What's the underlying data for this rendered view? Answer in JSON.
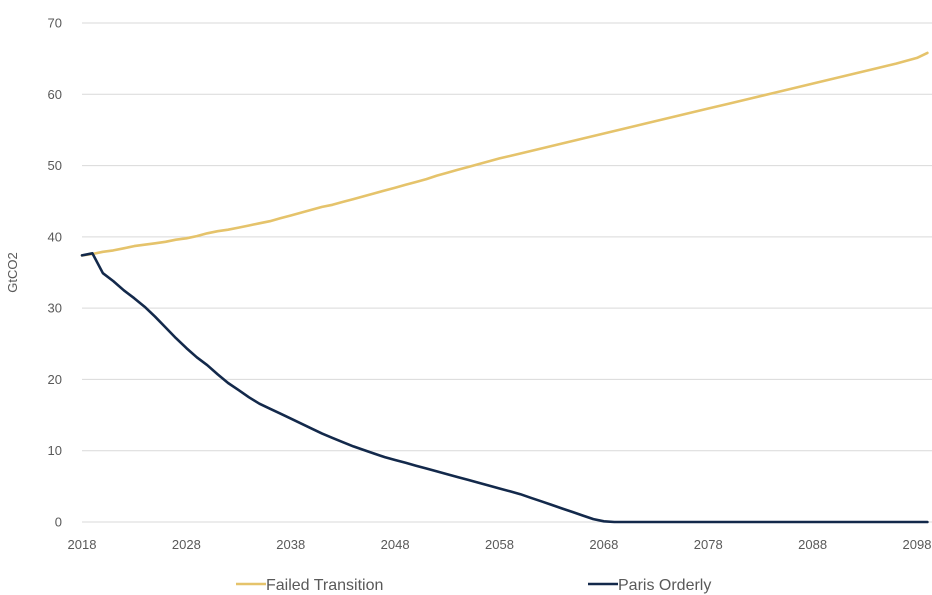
{
  "chart_data": {
    "type": "line",
    "title": "",
    "xlabel": "",
    "ylabel": "GtCO2",
    "xlim": [
      2018,
      2099
    ],
    "ylim": [
      0,
      70
    ],
    "x_ticks": [
      2018,
      2028,
      2038,
      2048,
      2058,
      2068,
      2078,
      2088,
      2098
    ],
    "y_ticks": [
      0,
      10,
      20,
      30,
      40,
      50,
      60,
      70
    ],
    "grid": true,
    "legend_position": "bottom",
    "series": [
      {
        "name": "Failed Transition",
        "color": "#e5c36b",
        "points": [
          [
            2018,
            37.4
          ],
          [
            2019,
            37.6
          ],
          [
            2020,
            37.9
          ],
          [
            2021,
            38.1
          ],
          [
            2022,
            38.4
          ],
          [
            2023,
            38.7
          ],
          [
            2024,
            38.9
          ],
          [
            2025,
            39.1
          ],
          [
            2026,
            39.3
          ],
          [
            2027,
            39.6
          ],
          [
            2028,
            39.8
          ],
          [
            2029,
            40.1
          ],
          [
            2030,
            40.5
          ],
          [
            2031,
            40.8
          ],
          [
            2032,
            41.0
          ],
          [
            2033,
            41.3
          ],
          [
            2034,
            41.6
          ],
          [
            2035,
            41.9
          ],
          [
            2036,
            42.2
          ],
          [
            2037,
            42.6
          ],
          [
            2038,
            43.0
          ],
          [
            2039,
            43.4
          ],
          [
            2040,
            43.8
          ],
          [
            2041,
            44.2
          ],
          [
            2042,
            44.5
          ],
          [
            2043,
            44.9
          ],
          [
            2044,
            45.3
          ],
          [
            2045,
            45.7
          ],
          [
            2046,
            46.1
          ],
          [
            2047,
            46.5
          ],
          [
            2048,
            46.9
          ],
          [
            2049,
            47.3
          ],
          [
            2050,
            47.7
          ],
          [
            2051,
            48.1
          ],
          [
            2052,
            48.6
          ],
          [
            2053,
            49.0
          ],
          [
            2054,
            49.4
          ],
          [
            2055,
            49.8
          ],
          [
            2056,
            50.2
          ],
          [
            2057,
            50.6
          ],
          [
            2058,
            51.0
          ],
          [
            2060,
            51.7
          ],
          [
            2062,
            52.4
          ],
          [
            2064,
            53.1
          ],
          [
            2066,
            53.8
          ],
          [
            2068,
            54.5
          ],
          [
            2070,
            55.2
          ],
          [
            2072,
            55.9
          ],
          [
            2074,
            56.6
          ],
          [
            2076,
            57.3
          ],
          [
            2078,
            58.0
          ],
          [
            2080,
            58.7
          ],
          [
            2082,
            59.4
          ],
          [
            2084,
            60.1
          ],
          [
            2086,
            60.8
          ],
          [
            2088,
            61.5
          ],
          [
            2090,
            62.2
          ],
          [
            2092,
            62.9
          ],
          [
            2094,
            63.6
          ],
          [
            2096,
            64.3
          ],
          [
            2098,
            65.1
          ],
          [
            2099,
            65.8
          ]
        ]
      },
      {
        "name": "Paris Orderly",
        "color": "#13294b",
        "points": [
          [
            2018,
            37.4
          ],
          [
            2019,
            37.7
          ],
          [
            2020,
            34.9
          ],
          [
            2021,
            33.8
          ],
          [
            2022,
            32.5
          ],
          [
            2023,
            31.4
          ],
          [
            2024,
            30.2
          ],
          [
            2025,
            28.8
          ],
          [
            2026,
            27.3
          ],
          [
            2027,
            25.8
          ],
          [
            2028,
            24.4
          ],
          [
            2029,
            23.1
          ],
          [
            2030,
            22.0
          ],
          [
            2031,
            20.7
          ],
          [
            2032,
            19.5
          ],
          [
            2033,
            18.5
          ],
          [
            2034,
            17.5
          ],
          [
            2035,
            16.6
          ],
          [
            2036,
            15.9
          ],
          [
            2037,
            15.2
          ],
          [
            2038,
            14.5
          ],
          [
            2039,
            13.8
          ],
          [
            2040,
            13.1
          ],
          [
            2041,
            12.4
          ],
          [
            2042,
            11.8
          ],
          [
            2043,
            11.2
          ],
          [
            2044,
            10.6
          ],
          [
            2045,
            10.1
          ],
          [
            2046,
            9.6
          ],
          [
            2047,
            9.1
          ],
          [
            2048,
            8.7
          ],
          [
            2049,
            8.3
          ],
          [
            2050,
            7.9
          ],
          [
            2051,
            7.5
          ],
          [
            2052,
            7.1
          ],
          [
            2053,
            6.7
          ],
          [
            2054,
            6.3
          ],
          [
            2055,
            5.9
          ],
          [
            2056,
            5.5
          ],
          [
            2057,
            5.1
          ],
          [
            2058,
            4.7
          ],
          [
            2059,
            4.3
          ],
          [
            2060,
            3.9
          ],
          [
            2061,
            3.4
          ],
          [
            2062,
            2.9
          ],
          [
            2063,
            2.4
          ],
          [
            2064,
            1.9
          ],
          [
            2065,
            1.4
          ],
          [
            2066,
            0.9
          ],
          [
            2067,
            0.4
          ],
          [
            2068,
            0.1
          ],
          [
            2069,
            0.0
          ],
          [
            2070,
            0.0
          ],
          [
            2080,
            0.0
          ],
          [
            2090,
            0.0
          ],
          [
            2099,
            0.0
          ]
        ]
      }
    ]
  }
}
